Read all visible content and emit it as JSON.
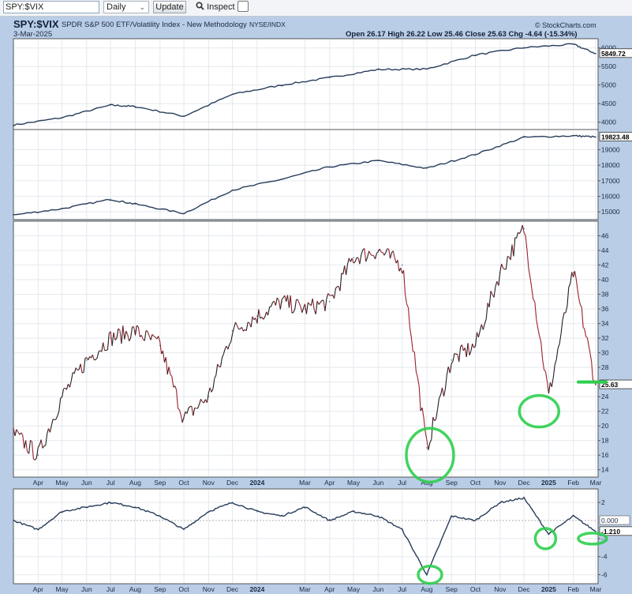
{
  "toolbar": {
    "symbol_value": "SPY:$VIX",
    "period_value": "Daily",
    "update_label": "Update",
    "inspect_label": "Inspect"
  },
  "header": {
    "symbol": "SPY:$VIX",
    "description": "SPDR S&P 500 ETF/Volatility Index - New Methodology",
    "exchange": "NYSE/INDX",
    "date": "3-Mar-2025",
    "brand": "© StockCharts.com",
    "ohlc": "Open 26.17  High 26.22  Low 25.46  Close 25.63  Chg -4.64 (-15.34%)"
  },
  "colors": {
    "background": "#b9cde6",
    "panel": "#ffffff",
    "line": "#283c5a",
    "ratio_up": "#202020",
    "ratio_down": "#9a1f2a",
    "annotation": "#2ecf4e"
  },
  "chart_data": [
    {
      "type": "line",
      "panel": "top",
      "ytick_labels": [
        "4000",
        "4500",
        "5000",
        "5500",
        "6000"
      ],
      "last_value_label": "5849.72",
      "ylim": [
        3800,
        6250
      ],
      "x": [
        "2023-03",
        "2023-05",
        "2023-07",
        "2023-08",
        "2023-10",
        "2023-12",
        "2024-02",
        "2024-04",
        "2024-06",
        "2024-08",
        "2024-10",
        "2024-12",
        "2025-02",
        "2025-03"
      ],
      "values": [
        3920,
        4120,
        4460,
        4420,
        4160,
        4750,
        5000,
        5200,
        5420,
        5430,
        5810,
        6010,
        6100,
        5850
      ]
    },
    {
      "type": "line",
      "panel": "second",
      "ytick_labels": [
        "15000",
        "16000",
        "17000",
        "18000",
        "19000"
      ],
      "last_value_label": "19823.48",
      "ylim": [
        14500,
        20300
      ],
      "x": [
        "2023-03",
        "2023-05",
        "2023-07",
        "2023-08",
        "2023-10",
        "2023-12",
        "2024-02",
        "2024-04",
        "2024-06",
        "2024-08",
        "2024-10",
        "2024-12",
        "2025-02",
        "2025-03"
      ],
      "values": [
        14800,
        15200,
        15800,
        15500,
        14900,
        16400,
        17100,
        17900,
        18300,
        17800,
        18700,
        19800,
        19900,
        19823
      ]
    },
    {
      "type": "line",
      "panel": "ratio",
      "title": "SPY:$VIX",
      "ytick_labels": [
        "14",
        "16",
        "18",
        "20",
        "22",
        "24",
        "26",
        "28",
        "30",
        "32",
        "34",
        "36",
        "38",
        "40",
        "42",
        "44",
        "46"
      ],
      "last_value_label": "25.63",
      "ylim": [
        13,
        48
      ],
      "x": [
        "2023-03",
        "2023-04",
        "2023-05",
        "2023-06",
        "2023-07",
        "2023-08",
        "2023-09",
        "2023-10",
        "2023-11",
        "2023-12",
        "2024-01",
        "2024-02",
        "2024-03",
        "2024-04",
        "2024-05",
        "2024-06",
        "2024-07",
        "2024-08",
        "2024-09",
        "2024-10",
        "2024-11",
        "2024-12",
        "2025-01",
        "2025-02",
        "2025-03"
      ],
      "values": [
        19,
        16,
        24,
        29,
        32,
        33,
        31,
        21,
        24,
        33,
        35,
        37,
        36,
        37,
        43,
        44,
        42,
        17,
        29,
        31,
        41,
        47,
        24,
        41,
        25.63
      ]
    },
    {
      "type": "line",
      "panel": "oscillator",
      "ytick_labels": [
        "-6",
        "-4",
        "-2",
        "2"
      ],
      "zero_label": "0.000",
      "last_value_label": "-1.210",
      "ylim": [
        -7,
        3.5
      ],
      "x": [
        "2023-03",
        "2023-04",
        "2023-05",
        "2023-06",
        "2023-07",
        "2023-08",
        "2023-09",
        "2023-10",
        "2023-11",
        "2023-12",
        "2024-01",
        "2024-02",
        "2024-03",
        "2024-04",
        "2024-05",
        "2024-06",
        "2024-07",
        "2024-08",
        "2024-09",
        "2024-10",
        "2024-11",
        "2024-12",
        "2025-01",
        "2025-02",
        "2025-03"
      ],
      "values": [
        0,
        -1,
        1,
        1.5,
        2,
        1.5,
        0.5,
        -1,
        1,
        2,
        1,
        0.5,
        1.5,
        0,
        1,
        0.5,
        -1,
        -6,
        0.5,
        0,
        2,
        2.5,
        -1.5,
        0.5,
        -1.21
      ]
    }
  ],
  "x_axis_labels": [
    "Apr",
    "May",
    "Jun",
    "Jul",
    "Aug",
    "Sep",
    "Oct",
    "Nov",
    "Dec",
    "2024",
    "Mar",
    "Apr",
    "May",
    "Jun",
    "Jul",
    "Aug",
    "Sep",
    "Oct",
    "Nov",
    "Dec",
    "2025",
    "Feb",
    "Mar"
  ]
}
